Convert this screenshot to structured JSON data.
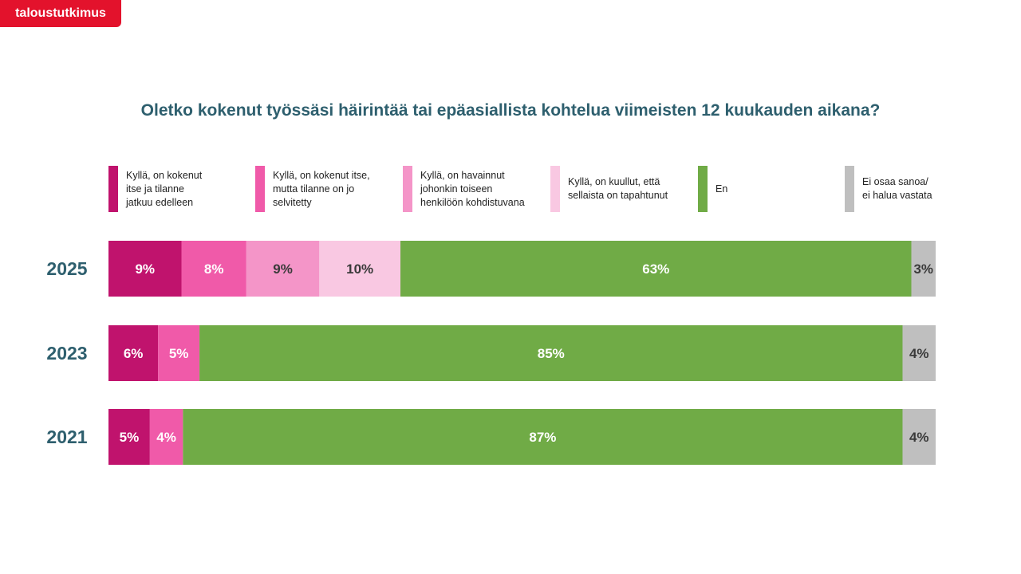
{
  "brand": {
    "name": "taloustutkimus"
  },
  "chart_data": {
    "type": "bar",
    "orientation": "horizontal",
    "stacked": true,
    "title": "Oletko kokenut työssäsi häirintää tai epäasiallista kohtelua viimeisten 12 kuukauden aikana?",
    "categories": [
      "2025",
      "2023",
      "2021"
    ],
    "xlim": [
      0,
      100
    ],
    "unit": "%",
    "grid": false,
    "legend_position": "top",
    "series": [
      {
        "name": "Kyllä, on kokenut itse ja tilanne jatkuu edelleen",
        "legend_lines": [
          "Kyllä, on kokenut",
          "itse ja tilanne",
          "jatkuu edelleen"
        ],
        "color": "#c0136d",
        "label_color": "#ffffff",
        "values": [
          9,
          6,
          5
        ]
      },
      {
        "name": "Kyllä, on kokenut itse, mutta tilanne on jo selvitetty",
        "legend_lines": [
          "Kyllä, on kokenut itse,",
          "mutta tilanne on jo",
          "selvitetty"
        ],
        "color": "#f05aa9",
        "label_color": "#ffffff",
        "values": [
          8,
          5,
          4
        ]
      },
      {
        "name": "Kyllä, on havainnut johonkin toiseen henkilöön kohdistuvana",
        "legend_lines": [
          "Kyllä, on havainnut",
          "johonkin toiseen",
          "henkilöön kohdistuvana"
        ],
        "color": "#f495c8",
        "label_color": "#3a3a3a",
        "values": [
          9,
          null,
          null
        ]
      },
      {
        "name": "Kyllä, on kuullut, että sellaista on tapahtunut",
        "legend_lines": [
          "Kyllä, on kuullut, että",
          "sellaista on tapahtunut"
        ],
        "color": "#f9c8e2",
        "label_color": "#3a3a3a",
        "values": [
          10,
          null,
          null
        ]
      },
      {
        "name": "En",
        "legend_lines": [
          "En"
        ],
        "color": "#70ab46",
        "label_color": "#ffffff",
        "values": [
          63,
          85,
          87
        ]
      },
      {
        "name": "Ei osaa sanoa/ ei halua vastata",
        "legend_lines": [
          "Ei osaa sanoa/",
          "ei halua vastata"
        ],
        "color": "#bfbfbf",
        "label_color": "#3a3a3a",
        "values": [
          3,
          4,
          4
        ]
      }
    ]
  }
}
